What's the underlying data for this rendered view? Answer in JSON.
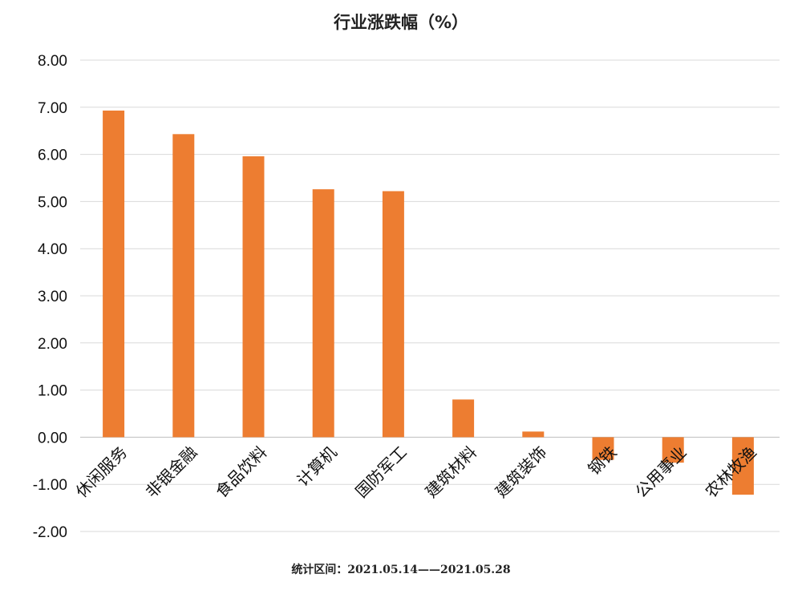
{
  "chart_data": {
    "type": "bar",
    "title": "行业涨跌幅（%）",
    "xlabel": "",
    "ylabel": "",
    "categories": [
      "休闲服务",
      "非银金融",
      "食品饮料",
      "计算机",
      "国防军工",
      "建筑材料",
      "建筑装饰",
      "钢铁",
      "公用事业",
      "农林牧渔"
    ],
    "values": [
      6.93,
      6.43,
      5.96,
      5.26,
      5.22,
      0.8,
      0.12,
      -0.48,
      -0.54,
      -1.22
    ],
    "ylim": [
      -2.0,
      8.0
    ],
    "yticks": [
      "8.00",
      "7.00",
      "6.00",
      "5.00",
      "4.00",
      "3.00",
      "2.00",
      "1.00",
      "0.00",
      "-1.00",
      "-2.00"
    ],
    "grid": true,
    "legend": "none",
    "bar_color": "#ED7D31",
    "grid_color": "#D9D9D9",
    "note": "统计区间：2021.05.14——2021.05.28"
  }
}
